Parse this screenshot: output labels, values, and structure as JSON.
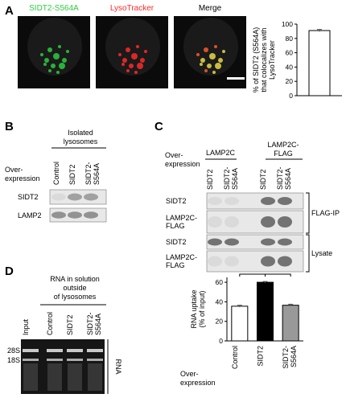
{
  "panels": {
    "A": {
      "label": "A",
      "channels": [
        "SIDT2-S564A",
        "LysoTracker",
        "Merge"
      ]
    },
    "B": {
      "label": "B",
      "header": [
        "Isolated",
        "lysosomes"
      ],
      "row_header": [
        "Over-",
        "expression"
      ],
      "lanes": [
        [
          "Control"
        ],
        [
          "SIDT2"
        ],
        [
          "SIDT2-",
          "S564A"
        ]
      ],
      "rows": [
        "SIDT2",
        "LAMP2"
      ]
    },
    "C": {
      "label": "C",
      "row_header": [
        "Over-",
        "expression"
      ],
      "groups": [
        [
          "LAMP2C"
        ],
        [
          "LAMP2C-",
          "FLAG"
        ]
      ],
      "lanes": [
        [
          "SIDT2"
        ],
        [
          "SIDT2-",
          "S564A"
        ],
        [
          "SIDT2"
        ],
        [
          "SIDT2-",
          "S564A"
        ]
      ],
      "rows": [
        [
          "SIDT2"
        ],
        [
          "LAMP2C-",
          "FLAG"
        ],
        [
          "SIDT2"
        ],
        [
          "LAMP2C-",
          "FLAG"
        ]
      ],
      "sections": [
        "FLAG-IP",
        "Lysate"
      ]
    },
    "D": {
      "label": "D",
      "header": [
        "RNA in solution",
        "outside",
        "of lysosomes"
      ],
      "lanes": [
        [
          "Input"
        ],
        [
          "Control"
        ],
        [
          "SIDT2"
        ],
        [
          "SIDT2-",
          "S564A"
        ]
      ],
      "markers": [
        "28S",
        "18S"
      ],
      "side_label": "RNA"
    }
  },
  "chart_data": [
    {
      "type": "bar",
      "y_label": [
        "% of SIDT2 (S564A)",
        "that colocalizes with",
        "LysoTracker"
      ],
      "values": [
        91
      ],
      "errors": [
        1.5
      ],
      "colors": [
        "#ffffff"
      ],
      "ylim": [
        0,
        100
      ],
      "yticks": [
        0,
        20,
        40,
        60,
        80,
        100
      ]
    },
    {
      "type": "bar",
      "y_label": [
        "RNA uptake",
        "(% of input)"
      ],
      "x_label": [
        "Over-",
        "expression"
      ],
      "categories": [
        [
          "Control"
        ],
        [
          "SIDT2"
        ],
        [
          "SIDT2-",
          "S564A"
        ]
      ],
      "values": [
        35.5,
        60,
        36.5
      ],
      "errors": [
        1,
        0.8,
        1
      ],
      "colors": [
        "#ffffff",
        "#000000",
        "#999999"
      ],
      "ylim": [
        0,
        65
      ],
      "yticks": [
        0,
        20,
        40,
        60
      ],
      "annotations": [
        {
          "text": "***",
          "between": [
            0,
            1
          ]
        },
        {
          "text": "***",
          "between": [
            1,
            2
          ]
        },
        {
          "text": "n.s.",
          "between": [
            0,
            2
          ]
        }
      ]
    }
  ]
}
